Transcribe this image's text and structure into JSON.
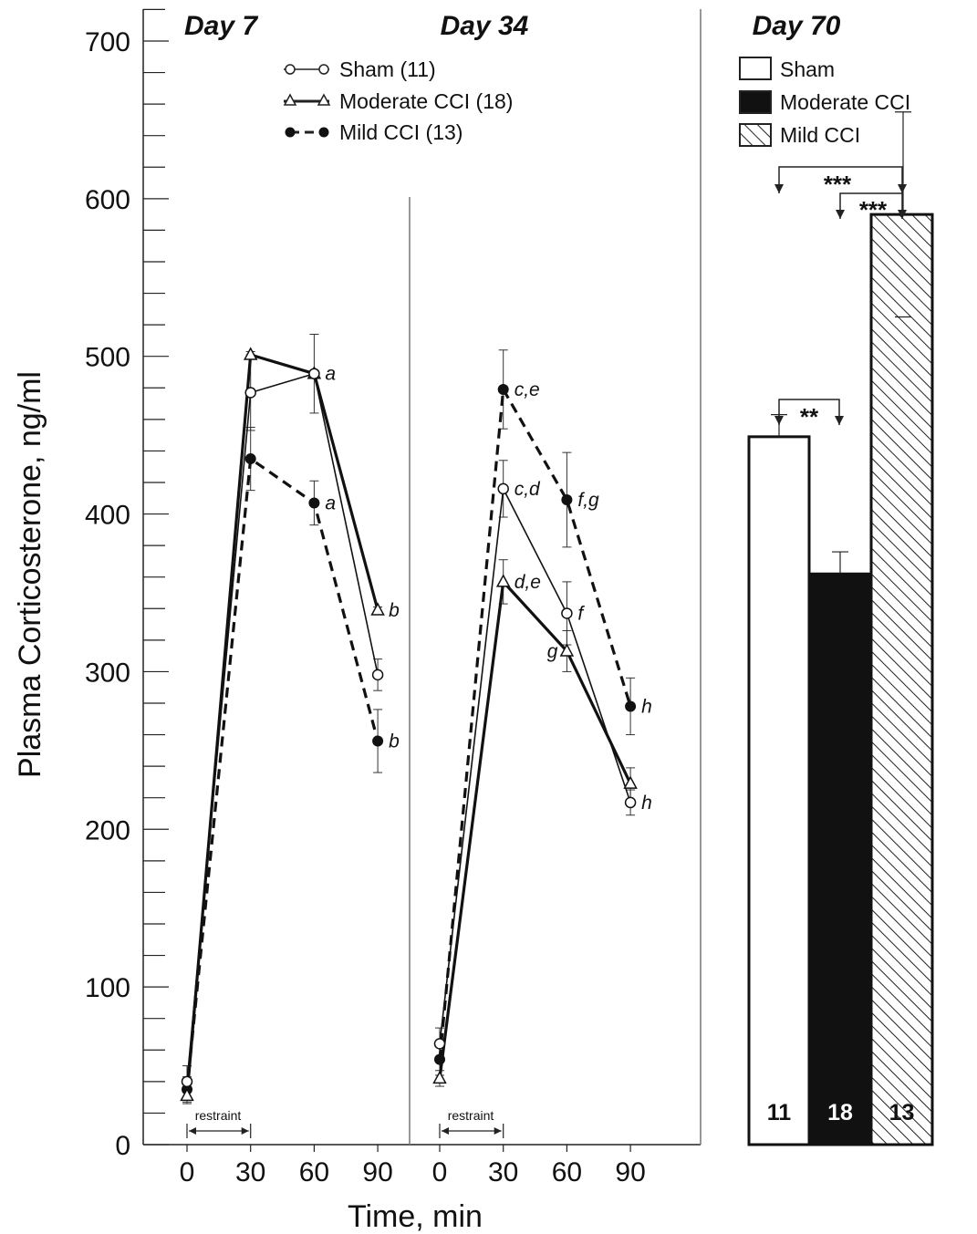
{
  "chart_data": {
    "type": "line",
    "ylabel": "Plasma Corticosterone, ng/ml",
    "xlabel": "Time, min",
    "ylim": [
      0,
      720
    ],
    "yticks": [
      0,
      100,
      200,
      300,
      400,
      500,
      600,
      700
    ],
    "xticks": [
      "0",
      "30",
      "60",
      "90"
    ],
    "restraint_label": "restraint",
    "legend_lines": [
      {
        "name": "Sham (11)",
        "marker": "open-circle",
        "style": "thin"
      },
      {
        "name": "Moderate CCI (18)",
        "marker": "open-triangle",
        "style": "thick"
      },
      {
        "name": "Mild CCI (13)",
        "marker": "filled-circle",
        "style": "dashed"
      }
    ],
    "panels": [
      {
        "title": "Day 7",
        "x": [
          0,
          30,
          60,
          90
        ],
        "series": [
          {
            "name": "Sham (11)",
            "values": [
              40,
              477,
              489,
              298
            ],
            "errors": [
              10,
              24,
              25,
              10
            ]
          },
          {
            "name": "Moderate CCI (18)",
            "values": [
              31,
              501,
              489,
              339
            ],
            "errors": [
              5,
              2,
              2,
              2
            ]
          },
          {
            "name": "Mild CCI (13)",
            "values": [
              35,
              435,
              407,
              256
            ],
            "errors": [
              8,
              20,
              14,
              20
            ]
          }
        ],
        "annotations": [
          {
            "text": "a",
            "x": 60,
            "y": 489
          },
          {
            "text": "a",
            "x": 60,
            "y": 407
          },
          {
            "text": "b",
            "x": 90,
            "y": 339
          },
          {
            "text": "b",
            "x": 90,
            "y": 256
          }
        ]
      },
      {
        "title": "Day 34",
        "x": [
          0,
          30,
          60,
          90
        ],
        "series": [
          {
            "name": "Sham (11)",
            "values": [
              64,
              416,
              337,
              217
            ],
            "errors": [
              10,
              18,
              20,
              8
            ]
          },
          {
            "name": "Moderate CCI (18)",
            "values": [
              42,
              357,
              313,
              229
            ],
            "errors": [
              5,
              14,
              13,
              10
            ]
          },
          {
            "name": "Mild CCI (13)",
            "values": [
              54,
              479,
              409,
              278
            ],
            "errors": [
              10,
              25,
              30,
              18
            ]
          }
        ],
        "annotations": [
          {
            "text": "c,e",
            "x": 30,
            "y": 479
          },
          {
            "text": "c,d",
            "x": 30,
            "y": 416
          },
          {
            "text": "d,e",
            "x": 30,
            "y": 357
          },
          {
            "text": "f,g",
            "x": 60,
            "y": 409
          },
          {
            "text": "f",
            "x": 60,
            "y": 337
          },
          {
            "text": "g",
            "x": 60,
            "y": 313
          },
          {
            "text": "h",
            "x": 90,
            "y": 278
          },
          {
            "text": "h",
            "x": 90,
            "y": 217
          }
        ]
      }
    ],
    "bar_panel": {
      "title": "Day 70",
      "type": "bar",
      "legend": [
        {
          "name": "Sham",
          "fill": "white"
        },
        {
          "name": "Moderate CCI",
          "fill": "black"
        },
        {
          "name": "Mild CCI",
          "fill": "hatch"
        }
      ],
      "bars": [
        {
          "name": "Sham",
          "value": 449,
          "error": 14,
          "n": "11"
        },
        {
          "name": "Moderate CCI",
          "value": 362,
          "error": 14,
          "n": "18"
        },
        {
          "name": "Mild CCI",
          "value": 590,
          "error": 65,
          "n": "13"
        }
      ],
      "significance": [
        {
          "label": "**",
          "from": 0,
          "to": 1
        },
        {
          "label": "***",
          "from": 0,
          "to": 2
        },
        {
          "label": "***",
          "from": 1,
          "to": 2
        }
      ]
    }
  }
}
